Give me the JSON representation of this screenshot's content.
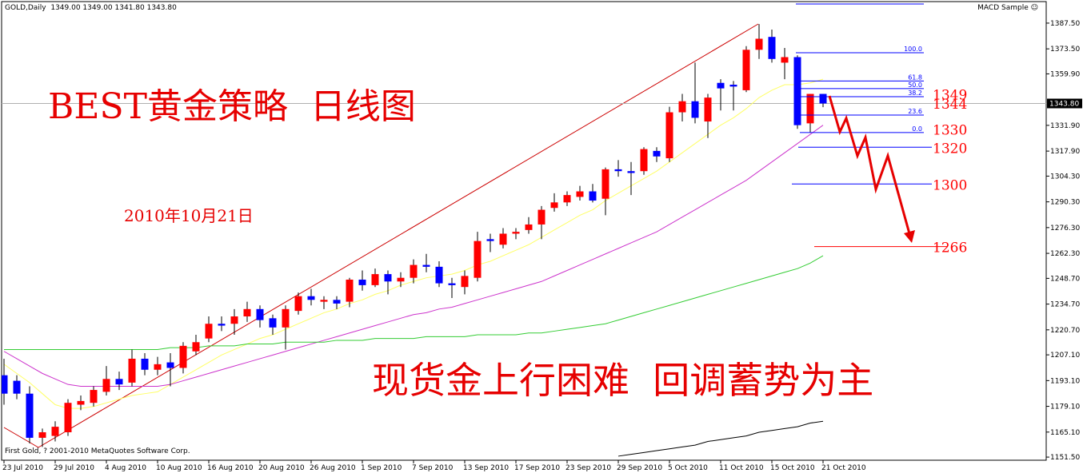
{
  "chart_data": {
    "type": "candlestick",
    "title": "GOLD,Daily  1349.00 1349.00 1341.80 1343.80",
    "indicator": "MACD Sample ☺",
    "copyright": "First Gold, ? 2001-2010 MetaQuotes Software Corp.",
    "annotations": [
      "BEST黄金策略  日线图",
      "2010年10月21日",
      "现货金上行困难  回调蓄势为主"
    ],
    "categories": [
      "23 Jul 2010",
      null,
      null,
      null,
      "29 Jul 2010",
      null,
      null,
      null,
      "4 Aug 2010",
      null,
      null,
      null,
      "10 Aug 2010",
      null,
      null,
      null,
      "16 Aug 2010",
      null,
      null,
      null,
      "20 Aug 2010",
      null,
      null,
      null,
      "26 Aug 2010",
      null,
      null,
      null,
      "1 Sep 2010",
      null,
      null,
      null,
      "7 Sep 2010",
      null,
      null,
      null,
      "13 Sep 2010",
      null,
      null,
      null,
      "17 Sep 2010",
      null,
      null,
      null,
      "23 Sep 2010",
      null,
      null,
      null,
      "29 Sep 2010",
      null,
      null,
      null,
      "5 Oct 2010",
      null,
      null,
      null,
      "11 Oct 2010",
      null,
      null,
      null,
      "15 Oct 2010",
      null,
      null,
      null,
      "21 Oct 2010"
    ],
    "open": [
      1196,
      1193,
      1186,
      1162,
      1163,
      1165,
      1180,
      1181,
      1187,
      1194,
      1192,
      1205,
      1199,
      1203,
      1200,
      1209,
      1216,
      1224,
      1224,
      1228,
      1232,
      1227,
      1222,
      1231,
      1239,
      1236,
      1237,
      1236,
      1248,
      1245,
      1251,
      1247,
      1249,
      1256,
      1255,
      1246,
      1244,
      1249,
      1270,
      1267,
      1273,
      1275,
      1278,
      1287,
      1290,
      1293,
      1296,
      1292,
      1308,
      1307,
      1307,
      1318,
      1314,
      1339,
      1345,
      1334,
      1355,
      1354,
      1351,
      1373,
      1380,
      1366,
      1369,
      1333,
      1349
    ],
    "high": [
      1205,
      1196,
      1190,
      1167,
      1171,
      1183,
      1185,
      1190,
      1201,
      1198,
      1210,
      1208,
      1206,
      1208,
      1214,
      1218,
      1228,
      1228,
      1232,
      1236,
      1234,
      1229,
      1234,
      1241,
      1243,
      1239,
      1239,
      1249,
      1253,
      1254,
      1253,
      1252,
      1259,
      1262,
      1258,
      1249,
      1253,
      1274,
      1273,
      1276,
      1276,
      1282,
      1288,
      1295,
      1296,
      1299,
      1300,
      1309,
      1313,
      1312,
      1320,
      1320,
      1342,
      1349,
      1366,
      1349,
      1357,
      1356,
      1375,
      1387,
      1384,
      1374,
      1370,
      1349,
      1349
    ],
    "low": [
      1180,
      1183,
      1159,
      1157,
      1160,
      1163,
      1177,
      1179,
      1185,
      1188,
      1190,
      1196,
      1196,
      1190,
      1197,
      1207,
      1214,
      1220,
      1218,
      1225,
      1222,
      1218,
      1210,
      1229,
      1234,
      1232,
      1232,
      1233,
      1242,
      1244,
      1240,
      1244,
      1246,
      1252,
      1244,
      1238,
      1240,
      1247,
      1263,
      1265,
      1270,
      1273,
      1270,
      1285,
      1288,
      1291,
      1290,
      1283,
      1304,
      1294,
      1305,
      1312,
      1312,
      1334,
      1333,
      1325,
      1340,
      1340,
      1350,
      1368,
      1366,
      1357,
      1330,
      1328,
      1341.8
    ],
    "close": [
      1186,
      1186,
      1162,
      1165,
      1168,
      1181,
      1182,
      1188,
      1194,
      1191,
      1205,
      1199,
      1202,
      1200,
      1212,
      1214,
      1224,
      1223,
      1228,
      1232,
      1226,
      1222,
      1232,
      1239,
      1237,
      1237,
      1235,
      1248,
      1245,
      1251,
      1247,
      1249,
      1256,
      1255,
      1246,
      1245,
      1250,
      1269,
      1269,
      1273,
      1274,
      1278,
      1286,
      1290,
      1294,
      1296,
      1291,
      1308,
      1307,
      1306,
      1319,
      1315,
      1339,
      1345,
      1336,
      1347,
      1352,
      1353,
      1373,
      1379,
      1368,
      1369,
      1332,
      1349,
      1343.8
    ],
    "up_color": "#ff0000",
    "down_color": "#0000ff",
    "wick_color": "#000000",
    "overlays": [
      {
        "color": "#ffff66",
        "values": [
          1202,
          1197,
          1192,
          1186,
          1180,
          1178,
          1178,
          1179,
          1181,
          1183,
          1185,
          1186,
          1187,
          1191,
          1195,
          1199,
          1203,
          1207,
          1210,
          1213,
          1216,
          1218,
          1221,
          1224,
          1227,
          1230,
          1232,
          1235,
          1237,
          1240,
          1242,
          1245,
          1247,
          1249,
          1250,
          1251,
          1253,
          1256,
          1258,
          1261,
          1264,
          1267,
          1271,
          1275,
          1279,
          1283,
          1286,
          1291,
          1295,
          1299,
          1303,
          1307,
          1312,
          1317,
          1322,
          1327,
          1332,
          1336,
          1341,
          1347,
          1351,
          1354,
          1354,
          1355,
          1357
        ]
      },
      {
        "color": "#cc33cc",
        "values": [
          1209,
          1205,
          1201,
          1197,
          1194,
          1191,
          1190,
          1190,
          1190,
          1190,
          1190,
          1190,
          1190,
          1191,
          1193,
          1195,
          1197,
          1199,
          1201,
          1203,
          1205,
          1207,
          1209,
          1211,
          1213,
          1215,
          1217,
          1219,
          1221,
          1223,
          1225,
          1227,
          1229,
          1230,
          1232,
          1233,
          1235,
          1237,
          1239,
          1241,
          1243,
          1245,
          1247,
          1250,
          1253,
          1256,
          1259,
          1262,
          1265,
          1268,
          1271,
          1274,
          1278,
          1282,
          1286,
          1290,
          1294,
          1298,
          1302,
          1307,
          1312,
          1317,
          1322,
          1327,
          1332
        ]
      },
      {
        "color": "#33cc33",
        "values": [
          1210,
          1210,
          1210,
          1210,
          1210,
          1210,
          1210,
          1210,
          1210,
          1210,
          1210,
          1210,
          1210,
          1211,
          1211,
          1211,
          1212,
          1212,
          1212,
          1213,
          1213,
          1213,
          1214,
          1214,
          1214,
          1214,
          1215,
          1215,
          1215,
          1216,
          1216,
          1216,
          1216,
          1217,
          1217,
          1217,
          1217,
          1218,
          1218,
          1218,
          1218,
          1219,
          1219,
          1220,
          1221,
          1222,
          1223,
          1224,
          1226,
          1228,
          1230,
          1232,
          1234,
          1236,
          1238,
          1240,
          1242,
          1244,
          1246,
          1248,
          1250,
          1252,
          1254,
          1257,
          1261
        ]
      },
      {
        "color": "#000000",
        "values": [
          null,
          null,
          null,
          null,
          null,
          null,
          null,
          null,
          null,
          null,
          null,
          null,
          null,
          null,
          null,
          null,
          null,
          null,
          null,
          null,
          null,
          null,
          null,
          null,
          null,
          null,
          null,
          null,
          null,
          null,
          null,
          null,
          null,
          null,
          null,
          null,
          null,
          null,
          null,
          null,
          null,
          null,
          null,
          null,
          null,
          null,
          null,
          null,
          1152,
          1153,
          1154,
          1155,
          1156,
          1157,
          1158,
          1160,
          1161,
          1162,
          1163,
          1165,
          1166,
          1167,
          1168,
          1170,
          1171
        ]
      }
    ],
    "last_price": {
      "value": 1343.8,
      "label": "1343.80"
    },
    "fib": {
      "color": "#0000ff",
      "levels": [
        {
          "value": 1371.4,
          "label": "100.0"
        },
        {
          "value": 1356,
          "label": "61.8"
        },
        {
          "value": 1351.9,
          "label": "50.0"
        },
        {
          "value": 1347.5,
          "label": "38.2"
        },
        {
          "value": 1337.5,
          "label": "23.6"
        },
        {
          "value": 1328,
          "label": "0.0"
        }
      ]
    },
    "levels": [
      {
        "value": 1349,
        "color": "#ff0000"
      },
      {
        "value": 1344,
        "color": "#ff0000"
      },
      {
        "value": 1330,
        "color": "#ff0000"
      },
      {
        "value": 1320,
        "color": "#ff0000",
        "line_color": "#0000ff"
      },
      {
        "value": 1300,
        "color": "#ff0000",
        "line_color": "#0000ff"
      },
      {
        "value": 1266,
        "color": "#ff0000",
        "line_color": "#ff0000"
      }
    ],
    "ylim": [
      1149.8,
      1399.2
    ],
    "yticks": [
      {
        "value": 1387.5,
        "label": "1387.50"
      },
      {
        "value": 1373.5,
        "label": "1373.50"
      },
      {
        "value": 1359.9,
        "label": "1359.90"
      },
      {
        "value": 1331.9,
        "label": "1331.90"
      },
      {
        "value": 1317.9,
        "label": "1317.90"
      },
      {
        "value": 1304.3,
        "label": "1304.30"
      },
      {
        "value": 1290.3,
        "label": "1290.30"
      },
      {
        "value": 1276.3,
        "label": "1276.30"
      },
      {
        "value": 1262.3,
        "label": "1262.30"
      },
      {
        "value": 1248.7,
        "label": "1248.70"
      },
      {
        "value": 1234.7,
        "label": "1234.70"
      },
      {
        "value": 1220.7,
        "label": "1220.70"
      },
      {
        "value": 1207.1,
        "label": "1207.10"
      },
      {
        "value": 1193.1,
        "label": "1193.10"
      },
      {
        "value": 1179.1,
        "label": "1179.10"
      },
      {
        "value": 1165.1,
        "label": "1165.10"
      },
      {
        "value": 1151.5,
        "label": "1151.50"
      }
    ]
  }
}
